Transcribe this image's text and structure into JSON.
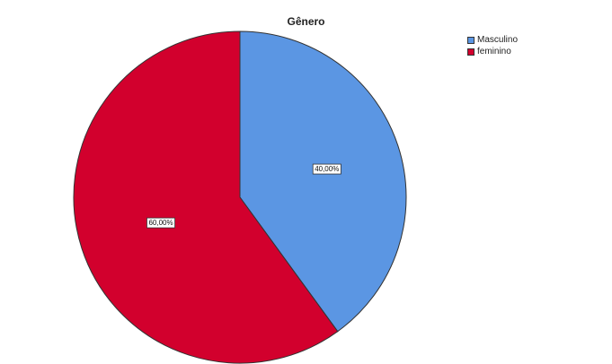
{
  "chart_data": {
    "type": "pie",
    "title": "Gênero",
    "categories": [
      "Masculino",
      "feminino"
    ],
    "values": [
      40,
      60
    ],
    "labels": [
      "40,00%",
      "60,00%"
    ],
    "colors": [
      "#5b96e3",
      "#d2002d"
    ],
    "legend_position": "top-right"
  }
}
